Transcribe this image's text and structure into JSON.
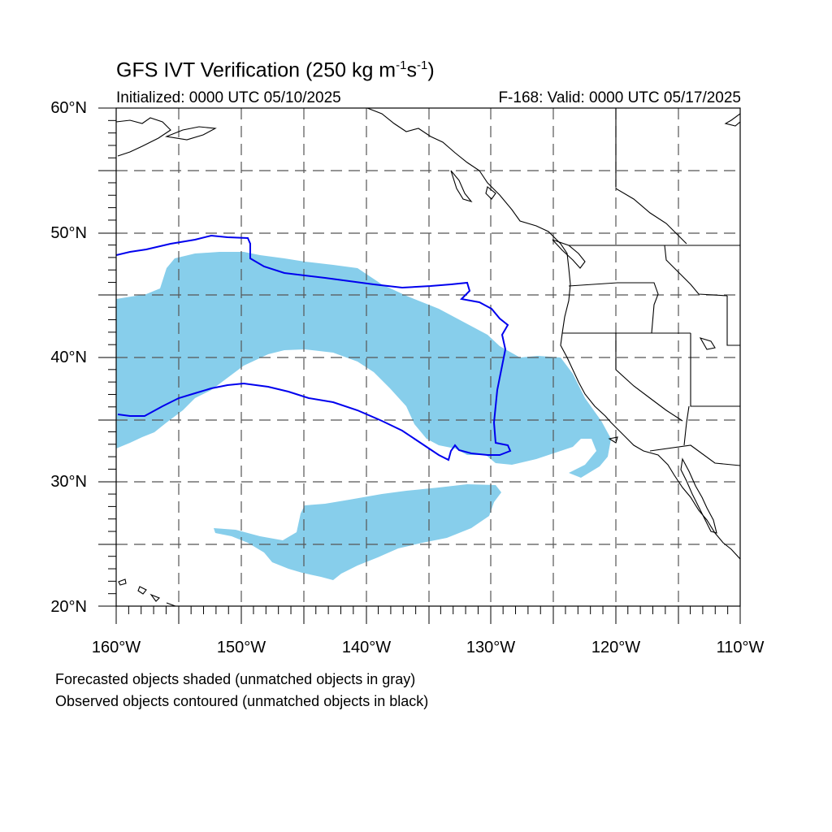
{
  "title": {
    "main": "GFS IVT Verification (250 kg m",
    "exp1": "-1",
    "mid": "s",
    "exp2": "-1",
    "end": ")"
  },
  "initialized": "Initialized: 0000 UTC 05/10/2025",
  "valid": "F-168: Valid: 0000 UTC 05/17/2025",
  "lat_labels": [
    "60°N",
    "50°N",
    "40°N",
    "30°N",
    "20°N"
  ],
  "lon_labels": [
    "160°W",
    "150°W",
    "140°W",
    "130°W",
    "120°W",
    "110°W"
  ],
  "notes": {
    "line1": "Forecasted objects shaded (unmatched objects in gray)",
    "line2": "Observed objects contoured (unmatched objects in black)"
  },
  "colors": {
    "forecast_fill": "#87ceeb",
    "observed_contour": "#0000ee",
    "coastline": "#000000",
    "grid": "#555555"
  }
}
